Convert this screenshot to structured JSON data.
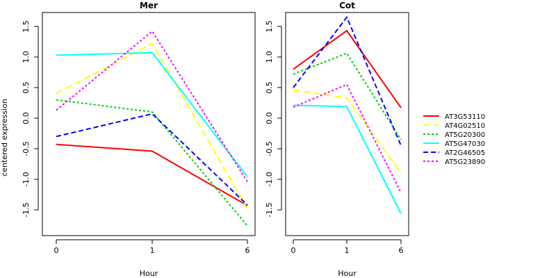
{
  "figure": {
    "ylabel": "centered expression",
    "legend_position": "right"
  },
  "chart_data": [
    {
      "type": "line",
      "title": "Mer",
      "xlabel": "Hour",
      "ylabel": "centered expression",
      "x": [
        "0",
        "1",
        "6"
      ],
      "ylim": [
        -1.8,
        1.6
      ],
      "yticks": [
        -1.5,
        -1.0,
        -0.5,
        0.0,
        0.5,
        1.0,
        1.5
      ],
      "ytick_labels": [
        "-1.5",
        "-1.0",
        "-0.5",
        "0.0",
        "0.5",
        "1.0",
        "1.5"
      ],
      "grid": false,
      "series": [
        {
          "name": "AT3G53110",
          "color": "#ff0000",
          "dash": "solid",
          "values": [
            -0.43,
            -0.54,
            -1.43
          ]
        },
        {
          "name": "AT4G02510",
          "color": "#ffff00",
          "dash": "long",
          "values": [
            0.4,
            1.22,
            -1.48
          ]
        },
        {
          "name": "AT5G20300",
          "color": "#00cc00",
          "dash": "dotted",
          "values": [
            0.3,
            0.1,
            -1.76
          ]
        },
        {
          "name": "AT5G47030",
          "color": "#00ffff",
          "dash": "solid",
          "values": [
            1.03,
            1.07,
            -0.96
          ]
        },
        {
          "name": "AT2G46505",
          "color": "#0000ff",
          "dash": "dashed",
          "values": [
            -0.3,
            0.07,
            -1.42
          ]
        },
        {
          "name": "AT5G23890",
          "color": "#ff00ff",
          "dash": "dotted",
          "values": [
            0.13,
            1.42,
            -1.04
          ]
        }
      ]
    },
    {
      "type": "line",
      "title": "Cot",
      "xlabel": "Hour",
      "x": [
        "0",
        "1",
        "6"
      ],
      "ylim": [
        -1.8,
        1.6
      ],
      "yticks": [
        -1.5,
        -1.0,
        -0.5,
        0.0,
        0.5,
        1.0,
        1.5
      ],
      "ytick_labels": [
        "-1.5",
        "-1.0",
        "-0.5",
        "0.0",
        "0.5",
        "1.0",
        "1.5"
      ],
      "grid": false,
      "series": [
        {
          "name": "AT3G53110",
          "color": "#ff0000",
          "dash": "solid",
          "values": [
            0.8,
            1.43,
            0.17
          ]
        },
        {
          "name": "AT4G02510",
          "color": "#ffff00",
          "dash": "long",
          "values": [
            0.46,
            0.33,
            -0.9
          ]
        },
        {
          "name": "AT5G20300",
          "color": "#00cc00",
          "dash": "dotted",
          "values": [
            0.72,
            1.06,
            -0.35
          ]
        },
        {
          "name": "AT5G47030",
          "color": "#00ffff",
          "dash": "solid",
          "values": [
            0.21,
            0.19,
            -1.56
          ]
        },
        {
          "name": "AT2G46505",
          "color": "#0000ff",
          "dash": "dashed",
          "values": [
            0.5,
            1.65,
            -0.45
          ]
        },
        {
          "name": "AT5G23890",
          "color": "#ff00ff",
          "dash": "dotted",
          "values": [
            0.18,
            0.55,
            -1.22
          ]
        }
      ]
    }
  ],
  "legend": {
    "entries": [
      {
        "label": "AT3G53110",
        "color": "#ff0000",
        "dash": "solid"
      },
      {
        "label": "AT4G02510",
        "color": "#ffff00",
        "dash": "long"
      },
      {
        "label": "AT5G20300",
        "color": "#00cc00",
        "dash": "dotted"
      },
      {
        "label": "AT5G47030",
        "color": "#00ffff",
        "dash": "solid"
      },
      {
        "label": "AT2G46505",
        "color": "#0000ff",
        "dash": "dashed"
      },
      {
        "label": "AT5G23890",
        "color": "#ff00ff",
        "dash": "dotted"
      }
    ]
  }
}
